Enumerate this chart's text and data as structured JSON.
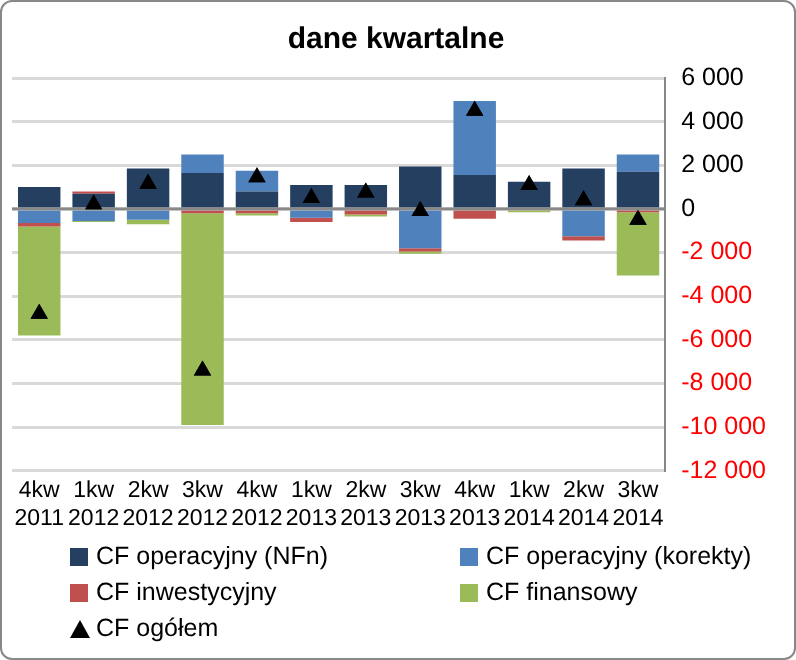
{
  "chart_data": {
    "type": "bar",
    "title": "dane kwartalne",
    "stacked": true,
    "grid": "y",
    "legend": "bottom",
    "categories": [
      "4kw 2011",
      "1kw 2012",
      "2kw 2012",
      "3kw 2012",
      "4kw 2012",
      "1kw 2013",
      "2kw 2013",
      "3kw 2013",
      "4kw 2013",
      "1kw 2014",
      "2kw 2014",
      "3kw 2014"
    ],
    "series": [
      {
        "name": "CF operacyjny (NFn)",
        "color": "#243f60",
        "values": [
          1000,
          700,
          1850,
          1650,
          800,
          1100,
          1100,
          1950,
          1550,
          1250,
          1850,
          1700
        ]
      },
      {
        "name": "CF operacyjny (korekty)",
        "color": "#4f81bd",
        "values": [
          -650,
          -550,
          -500,
          850,
          950,
          -400,
          null,
          -1800,
          3400,
          null,
          -1250,
          800
        ]
      },
      {
        "name": "CF inwestycyjny",
        "color": "#c0504d",
        "values": [
          -150,
          100,
          null,
          -200,
          -200,
          -200,
          -250,
          -150,
          -450,
          null,
          -200,
          -150
        ]
      },
      {
        "name": "CF finansowy",
        "color": "#9bbb59",
        "values": [
          -5000,
          -50,
          -200,
          -9700,
          -100,
          null,
          -100,
          -100,
          null,
          -150,
          null,
          -2900
        ]
      },
      {
        "name": "CF ogółem",
        "type": "scatter",
        "marker": "triangle",
        "color": "#000000",
        "x": [
          "4kw 2011",
          "1kw 2012",
          "2kw 2012",
          "3kw 2012",
          "4kw 2012",
          "1kw 2013",
          "2kw 2013",
          "3kw 2013",
          "4kw 2013",
          "1kw 2014",
          "2kw 2014",
          "3kw 2014"
        ],
        "values": [
          -4800,
          200,
          1150,
          -7400,
          1450,
          500,
          750,
          -100,
          4500,
          1100,
          400,
          -500
        ]
      }
    ],
    "ylim": [
      -12000,
      6000
    ],
    "yticks": [
      {
        "value": -12000,
        "label": "-12 000"
      },
      {
        "value": -10000,
        "label": "-10 000"
      },
      {
        "value": -8000,
        "label": "-8 000"
      },
      {
        "value": -6000,
        "label": "-6 000"
      },
      {
        "value": -4000,
        "label": "-4 000"
      },
      {
        "value": -2000,
        "label": "-2 000"
      },
      0,
      {
        "value": 2000,
        "label": "2 000"
      },
      {
        "value": 4000,
        "label": "4 000"
      },
      {
        "value": 6000,
        "label": "6 000"
      }
    ]
  }
}
